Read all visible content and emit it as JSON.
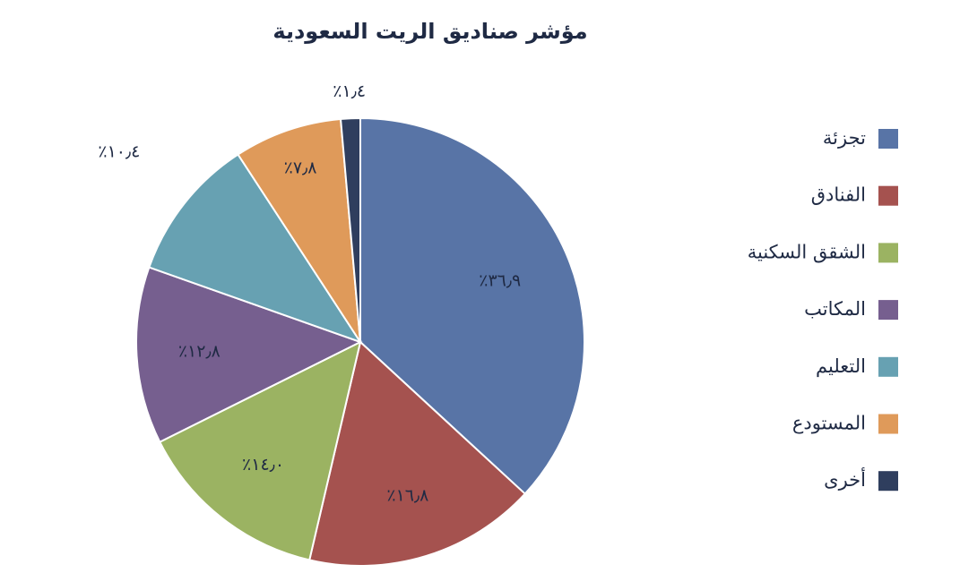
{
  "chart_data": {
    "type": "pie",
    "title": "مؤشر صناديق الريت السعودية",
    "categories": [
      "تجزئة",
      "الفنادق",
      "الشقق السكنية",
      "المكاتب",
      "التعليم",
      "المستودع",
      "أخرى"
    ],
    "values": [
      36.9,
      16.8,
      14.0,
      12.8,
      10.4,
      7.8,
      1.4
    ],
    "value_labels": [
      "٪٣٦٫٩",
      "٪١٦٫٨",
      "٪١٤٫٠",
      "٪١٢٫٨",
      "٪١٠٫٤",
      "٪٧٫٨",
      "٪١٫٤"
    ],
    "colors": [
      "#5874a6",
      "#a5524f",
      "#9bb362",
      "#765f8f",
      "#67a1b2",
      "#df9a5a",
      "#2f3e5e"
    ],
    "legend": "right"
  }
}
